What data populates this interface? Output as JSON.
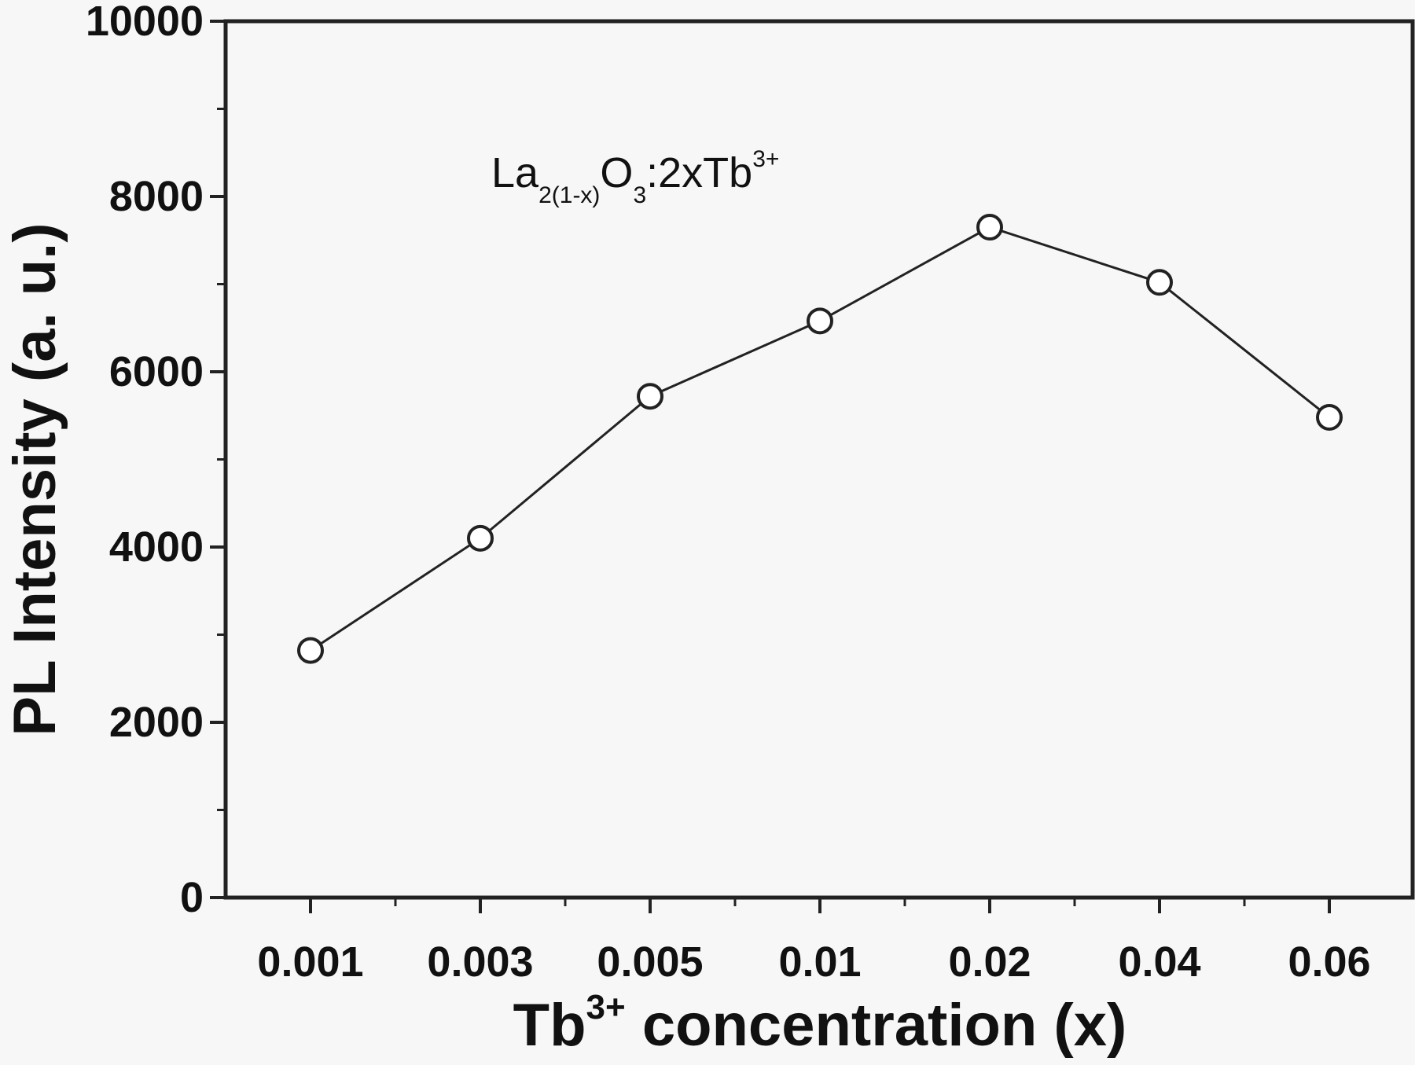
{
  "chart_data": {
    "type": "line",
    "title": "",
    "annotation": {
      "base1": "La",
      "sub1": "2(1-x)",
      "base2": "O",
      "sub2": "3",
      "base3": ":2xTb",
      "sup3": "3+"
    },
    "xlabel": {
      "prefix": "Tb",
      "sup": "3+",
      "suffix": " concentration (x)"
    },
    "ylabel": "PL Intensity (a. u.)",
    "categories": [
      "0.001",
      "0.003",
      "0.005",
      "0.01",
      "0.02",
      "0.04",
      "0.06"
    ],
    "series": [
      {
        "values": [
          2820,
          4100,
          5720,
          6580,
          7650,
          7020,
          5480
        ],
        "color": "#222222",
        "marker": "open-circle"
      }
    ],
    "ylim": [
      0,
      10000
    ],
    "yticks": [
      "0",
      "2000",
      "4000",
      "6000",
      "8000",
      "10000"
    ],
    "grid": false,
    "legend": "none"
  }
}
